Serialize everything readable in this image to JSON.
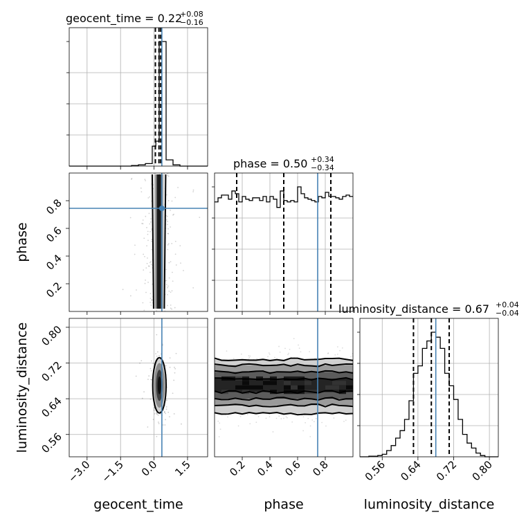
{
  "chart_data": {
    "type": "corner",
    "parameters": [
      "geocent_time",
      "phase",
      "luminosity_distance"
    ],
    "truth": {
      "geocent_time": 0.35,
      "phase": 0.745,
      "luminosity_distance": 0.68
    },
    "titles": [
      {
        "param": "geocent_time",
        "text": "geocent_time = 0.22",
        "plus": "+0.08",
        "minus": "−0.16"
      },
      {
        "param": "phase",
        "text": "phase = 0.50",
        "plus": "+0.34",
        "minus": "−0.34"
      },
      {
        "param": "luminosity_distance",
        "text": "luminosity_distance = 0.67",
        "plus": "+0.04",
        "minus": "−0.04"
      }
    ],
    "axes": {
      "geocent_time": {
        "range": [
          -3.8,
          2.4
        ],
        "ticks": [
          -3.0,
          -1.5,
          0.0,
          1.5
        ],
        "tick_labels": [
          "−3.0",
          "−1.5",
          "0.0",
          "1.5"
        ]
      },
      "phase": {
        "range": [
          0.0,
          1.0
        ],
        "ticks": [
          0.2,
          0.4,
          0.6,
          0.8
        ],
        "tick_labels": [
          "0.2",
          "0.4",
          "0.6",
          "0.8"
        ]
      },
      "luminosity_distance": {
        "range": [
          0.51,
          0.82
        ],
        "ticks": [
          0.56,
          0.64,
          0.72,
          0.8
        ],
        "tick_labels": [
          "0.56",
          "0.64",
          "0.72",
          "0.80"
        ]
      }
    },
    "marginals": {
      "geocent_time": {
        "edges": [
          -3.8,
          -3.49,
          -3.18,
          -2.87,
          -2.56,
          -2.25,
          -1.94,
          -1.63,
          -1.32,
          -1.01,
          -0.7,
          -0.39,
          -0.08,
          0.08,
          0.23,
          0.39,
          0.54,
          0.85,
          1.16,
          1.47,
          1.78,
          2.09,
          2.4
        ],
        "counts": [
          0,
          0,
          0,
          0,
          0,
          0,
          0,
          0,
          0,
          0.005,
          0.01,
          0.02,
          0.16,
          0.2,
          1.0,
          1.0,
          0.05,
          0.01,
          0,
          0,
          0,
          0
        ],
        "quantiles": [
          0.06,
          0.22,
          0.3
        ]
      },
      "phase": {
        "edges": [
          0.0,
          0.025,
          0.05,
          0.075,
          0.1,
          0.125,
          0.15,
          0.175,
          0.2,
          0.225,
          0.25,
          0.275,
          0.3,
          0.325,
          0.35,
          0.375,
          0.4,
          0.425,
          0.45,
          0.475,
          0.5,
          0.525,
          0.55,
          0.575,
          0.6,
          0.625,
          0.65,
          0.675,
          0.7,
          0.725,
          0.75,
          0.775,
          0.8,
          0.825,
          0.85,
          0.875,
          0.9,
          0.925,
          0.95,
          0.975,
          1.0
        ],
        "counts": [
          0.8,
          0.83,
          0.85,
          0.85,
          0.82,
          0.88,
          0.86,
          0.8,
          0.84,
          0.82,
          0.81,
          0.83,
          0.83,
          0.81,
          0.84,
          0.8,
          0.84,
          0.82,
          0.76,
          0.88,
          0.81,
          0.8,
          0.81,
          0.8,
          0.91,
          0.86,
          0.83,
          0.82,
          0.81,
          0.8,
          0.84,
          0.83,
          0.87,
          0.84,
          0.84,
          0.83,
          0.82,
          0.84,
          0.85,
          0.84
        ],
        "quantiles": [
          0.16,
          0.5,
          0.84
        ]
      },
      "luminosity_distance": {
        "edges": [
          0.51,
          0.52,
          0.53,
          0.54,
          0.55,
          0.56,
          0.57,
          0.58,
          0.59,
          0.6,
          0.61,
          0.62,
          0.63,
          0.64,
          0.65,
          0.66,
          0.67,
          0.68,
          0.69,
          0.7,
          0.71,
          0.72,
          0.73,
          0.74,
          0.75,
          0.76,
          0.77,
          0.78,
          0.79,
          0.8,
          0.81,
          0.82
        ],
        "counts": [
          0,
          0,
          0.005,
          0.005,
          0.01,
          0.02,
          0.05,
          0.09,
          0.15,
          0.21,
          0.3,
          0.45,
          0.67,
          0.73,
          0.87,
          0.93,
          1.0,
          0.96,
          0.87,
          0.67,
          0.57,
          0.46,
          0.3,
          0.18,
          0.11,
          0.07,
          0.03,
          0.01,
          0,
          0,
          0
        ],
        "quantiles": [
          0.63,
          0.67,
          0.71
        ]
      }
    },
    "joint_2d": [
      {
        "x": "geocent_time",
        "y": "phase",
        "center": [
          0.22,
          0.5
        ],
        "contour_half_widths_x": [
          0.08,
          0.12,
          0.18,
          0.24
        ],
        "band_y": [
          0.02,
          0.99
        ]
      },
      {
        "x": "geocent_time",
        "y": "luminosity_distance",
        "center": [
          0.24,
          0.67
        ],
        "contour_radii": [
          [
            0.08,
            0.02
          ],
          [
            0.15,
            0.035
          ],
          [
            0.24,
            0.05
          ],
          [
            0.3,
            0.062
          ]
        ]
      },
      {
        "x": "phase",
        "y": "luminosity_distance",
        "contour_levels_y": [
          [
            0.655,
            0.685
          ],
          [
            0.64,
            0.7
          ],
          [
            0.625,
            0.715
          ],
          [
            0.607,
            0.728
          ]
        ]
      }
    ]
  }
}
